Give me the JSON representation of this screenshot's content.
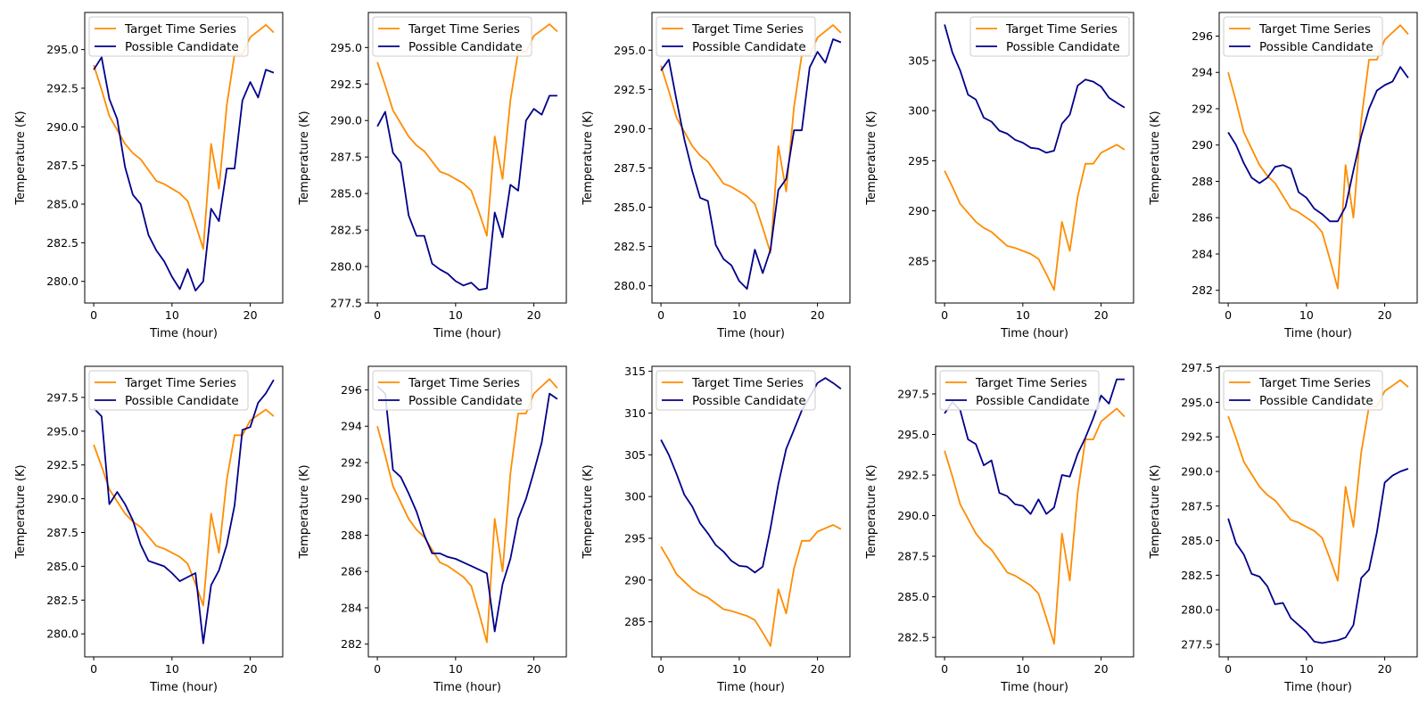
{
  "chart_data": [
    {
      "type": "line",
      "xlabel": "Time (hour)",
      "ylabel": "Temperature (K)",
      "xticks": [
        0,
        10,
        20
      ],
      "yticks": [
        280.0,
        282.5,
        285.0,
        287.5,
        290.0,
        292.5,
        295.0
      ],
      "ylim": [
        278.6,
        297.4
      ],
      "series": [
        {
          "name": "Target Time Series",
          "color": "#ff8c00",
          "values": [
            294.0,
            292.4,
            290.7,
            289.8,
            288.9,
            288.3,
            287.9,
            287.2,
            286.5,
            286.3,
            286.0,
            285.7,
            285.2,
            283.7,
            282.1,
            288.9,
            286.0,
            291.4,
            294.7,
            294.7,
            295.8,
            296.2,
            296.6,
            296.1
          ]
        },
        {
          "name": "Possible Candidate",
          "color": "#00008b",
          "values": [
            293.7,
            294.5,
            291.8,
            290.5,
            287.4,
            285.6,
            285.0,
            283.0,
            282.0,
            281.3,
            280.3,
            279.5,
            280.8,
            279.4,
            280.0,
            284.7,
            283.9,
            287.3,
            287.3,
            291.7,
            292.9,
            291.9,
            293.7,
            293.5
          ]
        }
      ],
      "legend": "upper-left"
    },
    {
      "type": "line",
      "xlabel": "Time (hour)",
      "ylabel": "Temperature (K)",
      "xticks": [
        0,
        10,
        20
      ],
      "yticks": [
        277.5,
        280.0,
        282.5,
        285.0,
        287.5,
        290.0,
        292.5,
        295.0
      ],
      "ylim": [
        277.5,
        297.4
      ],
      "series": [
        {
          "name": "Target Time Series",
          "color": "#ff8c00",
          "values": [
            294.0,
            292.4,
            290.7,
            289.8,
            288.9,
            288.3,
            287.9,
            287.2,
            286.5,
            286.3,
            286.0,
            285.7,
            285.2,
            283.7,
            282.1,
            288.9,
            286.0,
            291.4,
            294.7,
            294.7,
            295.8,
            296.2,
            296.6,
            296.1
          ]
        },
        {
          "name": "Possible Candidate",
          "color": "#00008b",
          "values": [
            289.6,
            290.6,
            287.8,
            287.1,
            283.5,
            282.1,
            282.1,
            280.2,
            279.8,
            279.5,
            279.0,
            278.7,
            278.9,
            278.4,
            278.5,
            283.7,
            282.0,
            285.6,
            285.2,
            290.0,
            290.8,
            290.4,
            291.7,
            291.7
          ]
        }
      ],
      "legend": "upper-left"
    },
    {
      "type": "line",
      "xlabel": "Time (hour)",
      "ylabel": "Temperature (K)",
      "xticks": [
        0,
        10,
        20
      ],
      "yticks": [
        280.0,
        282.5,
        285.0,
        287.5,
        290.0,
        292.5,
        295.0
      ],
      "ylim": [
        278.9,
        297.4
      ],
      "series": [
        {
          "name": "Target Time Series",
          "color": "#ff8c00",
          "values": [
            294.0,
            292.4,
            290.7,
            289.8,
            288.9,
            288.3,
            287.9,
            287.2,
            286.5,
            286.3,
            286.0,
            285.7,
            285.2,
            283.7,
            282.1,
            288.9,
            286.0,
            291.4,
            294.7,
            294.7,
            295.8,
            296.2,
            296.6,
            296.1
          ]
        },
        {
          "name": "Possible Candidate",
          "color": "#00008b",
          "values": [
            293.7,
            294.4,
            291.8,
            289.3,
            287.3,
            285.6,
            285.4,
            282.6,
            281.7,
            281.3,
            280.3,
            279.8,
            282.3,
            280.8,
            282.3,
            286.1,
            286.8,
            289.9,
            289.9,
            293.9,
            294.9,
            294.2,
            295.7,
            295.5
          ]
        }
      ],
      "legend": "upper-left"
    },
    {
      "type": "line",
      "xlabel": "Time (hour)",
      "ylabel": "Temperature (K)",
      "xticks": [
        0,
        10,
        20
      ],
      "yticks": [
        285,
        290,
        295,
        300,
        305
      ],
      "ylim": [
        280.8,
        309.8
      ],
      "series": [
        {
          "name": "Target Time Series",
          "color": "#ff8c00",
          "values": [
            294.0,
            292.4,
            290.7,
            289.8,
            288.9,
            288.3,
            287.9,
            287.2,
            286.5,
            286.3,
            286.0,
            285.7,
            285.2,
            283.7,
            282.1,
            288.9,
            286.0,
            291.4,
            294.7,
            294.7,
            295.8,
            296.2,
            296.6,
            296.1
          ]
        },
        {
          "name": "Possible Candidate",
          "color": "#00008b",
          "values": [
            308.6,
            305.8,
            304.0,
            301.6,
            301.1,
            299.3,
            298.9,
            298.0,
            297.7,
            297.1,
            296.8,
            296.3,
            296.2,
            295.8,
            296.0,
            298.7,
            299.6,
            302.5,
            303.1,
            302.9,
            302.4,
            301.3,
            300.8,
            300.3
          ]
        }
      ],
      "legend": "upper-right"
    },
    {
      "type": "line",
      "xlabel": "Time (hour)",
      "ylabel": "Temperature (K)",
      "xticks": [
        0,
        10,
        20
      ],
      "yticks": [
        282,
        284,
        286,
        288,
        290,
        292,
        294,
        296
      ],
      "ylim": [
        281.3,
        297.3
      ],
      "series": [
        {
          "name": "Target Time Series",
          "color": "#ff8c00",
          "values": [
            294.0,
            292.4,
            290.7,
            289.8,
            288.9,
            288.3,
            287.9,
            287.2,
            286.5,
            286.3,
            286.0,
            285.7,
            285.2,
            283.7,
            282.1,
            288.9,
            286.0,
            291.4,
            294.7,
            294.7,
            295.8,
            296.2,
            296.6,
            296.1
          ]
        },
        {
          "name": "Possible Candidate",
          "color": "#00008b",
          "values": [
            290.7,
            290.0,
            289.0,
            288.2,
            287.9,
            288.2,
            288.8,
            288.9,
            288.7,
            287.4,
            287.1,
            286.5,
            286.2,
            285.8,
            285.8,
            286.6,
            288.6,
            290.5,
            292.0,
            293.0,
            293.3,
            293.5,
            294.3,
            293.7
          ]
        }
      ],
      "legend": "upper-left"
    },
    {
      "type": "line",
      "xlabel": "Time (hour)",
      "ylabel": "Temperature (K)",
      "xticks": [
        0,
        10,
        20
      ],
      "yticks": [
        280.0,
        282.5,
        285.0,
        287.5,
        290.0,
        292.5,
        295.0,
        297.5
      ],
      "ylim": [
        278.3,
        299.8
      ],
      "series": [
        {
          "name": "Target Time Series",
          "color": "#ff8c00",
          "values": [
            294.0,
            292.4,
            290.7,
            289.8,
            288.9,
            288.3,
            287.9,
            287.2,
            286.5,
            286.3,
            286.0,
            285.7,
            285.2,
            283.7,
            282.1,
            288.9,
            286.0,
            291.4,
            294.7,
            294.7,
            295.8,
            296.2,
            296.6,
            296.1
          ]
        },
        {
          "name": "Possible Candidate",
          "color": "#00008b",
          "values": [
            296.7,
            296.1,
            289.6,
            290.5,
            289.6,
            288.4,
            286.6,
            285.4,
            285.2,
            285.0,
            284.5,
            283.9,
            284.2,
            284.5,
            279.3,
            283.6,
            284.7,
            286.6,
            289.5,
            295.1,
            295.3,
            297.1,
            297.8,
            298.8
          ]
        }
      ],
      "legend": "upper-left"
    },
    {
      "type": "line",
      "xlabel": "Time (hour)",
      "ylabel": "Temperature (K)",
      "xticks": [
        0,
        10,
        20
      ],
      "yticks": [
        282,
        284,
        286,
        288,
        290,
        292,
        294,
        296
      ],
      "ylim": [
        281.3,
        297.3
      ],
      "series": [
        {
          "name": "Target Time Series",
          "color": "#ff8c00",
          "values": [
            294.0,
            292.4,
            290.7,
            289.8,
            288.9,
            288.3,
            287.9,
            287.2,
            286.5,
            286.3,
            286.0,
            285.7,
            285.2,
            283.7,
            282.1,
            288.9,
            286.0,
            291.4,
            294.7,
            294.7,
            295.8,
            296.2,
            296.6,
            296.1
          ]
        },
        {
          "name": "Possible Candidate",
          "color": "#00008b",
          "values": [
            296.2,
            295.8,
            291.6,
            291.2,
            290.3,
            289.3,
            288.0,
            287.0,
            287.0,
            286.8,
            286.7,
            286.5,
            286.3,
            286.1,
            285.9,
            282.7,
            285.3,
            286.7,
            288.9,
            290.0,
            291.5,
            293.1,
            295.8,
            295.5
          ]
        }
      ],
      "legend": "upper-left"
    },
    {
      "type": "line",
      "xlabel": "Time (hour)",
      "ylabel": "Temperature (K)",
      "xticks": [
        0,
        10,
        20
      ],
      "yticks": [
        285,
        290,
        295,
        300,
        305,
        310,
        315
      ],
      "ylim": [
        280.8,
        315.6
      ],
      "series": [
        {
          "name": "Target Time Series",
          "color": "#ff8c00",
          "values": [
            294.0,
            292.4,
            290.7,
            289.8,
            288.9,
            288.3,
            287.9,
            287.2,
            286.5,
            286.3,
            286.0,
            285.7,
            285.2,
            283.7,
            282.1,
            288.9,
            286.0,
            291.4,
            294.7,
            294.7,
            295.8,
            296.2,
            296.6,
            296.1
          ]
        },
        {
          "name": "Possible Candidate",
          "color": "#00008b",
          "values": [
            306.8,
            305.0,
            302.7,
            300.2,
            298.8,
            296.8,
            295.6,
            294.2,
            293.4,
            292.3,
            291.7,
            291.6,
            290.9,
            291.6,
            296.2,
            301.5,
            305.7,
            308.0,
            310.3,
            311.9,
            313.6,
            314.2,
            313.6,
            312.9
          ]
        }
      ],
      "legend": "upper-left"
    },
    {
      "type": "line",
      "xlabel": "Time (hour)",
      "ylabel": "Temperature (K)",
      "xticks": [
        0,
        10,
        20
      ],
      "yticks": [
        282.5,
        285.0,
        287.5,
        290.0,
        292.5,
        295.0,
        297.5
      ],
      "ylim": [
        281.3,
        299.2
      ],
      "series": [
        {
          "name": "Target Time Series",
          "color": "#ff8c00",
          "values": [
            294.0,
            292.4,
            290.7,
            289.8,
            288.9,
            288.3,
            287.9,
            287.2,
            286.5,
            286.3,
            286.0,
            285.7,
            285.2,
            283.7,
            282.1,
            288.9,
            286.0,
            291.4,
            294.7,
            294.7,
            295.8,
            296.2,
            296.6,
            296.1
          ]
        },
        {
          "name": "Possible Candidate",
          "color": "#00008b",
          "values": [
            296.3,
            297.0,
            296.5,
            294.7,
            294.4,
            293.1,
            293.4,
            291.4,
            291.2,
            290.7,
            290.6,
            290.1,
            291.0,
            290.1,
            290.5,
            292.5,
            292.4,
            293.8,
            294.8,
            296.0,
            297.4,
            296.9,
            298.4,
            298.4
          ]
        }
      ],
      "legend": "upper-left"
    },
    {
      "type": "line",
      "xlabel": "Time (hour)",
      "ylabel": "Temperature (K)",
      "xticks": [
        0,
        10,
        20
      ],
      "yticks": [
        277.5,
        280.0,
        282.5,
        285.0,
        287.5,
        290.0,
        292.5,
        295.0,
        297.5
      ],
      "ylim": [
        276.6,
        297.6
      ],
      "series": [
        {
          "name": "Target Time Series",
          "color": "#ff8c00",
          "values": [
            294.0,
            292.4,
            290.7,
            289.8,
            288.9,
            288.3,
            287.9,
            287.2,
            286.5,
            286.3,
            286.0,
            285.7,
            285.2,
            283.7,
            282.1,
            288.9,
            286.0,
            291.4,
            294.7,
            294.7,
            295.8,
            296.2,
            296.6,
            296.1
          ]
        },
        {
          "name": "Possible Candidate",
          "color": "#00008b",
          "values": [
            286.6,
            284.8,
            284.0,
            282.6,
            282.4,
            281.7,
            280.4,
            280.5,
            279.4,
            278.9,
            278.4,
            277.7,
            277.6,
            277.7,
            277.8,
            278.0,
            278.9,
            282.3,
            282.9,
            285.6,
            289.2,
            289.7,
            290.0,
            290.2
          ]
        }
      ],
      "legend": "upper-left"
    }
  ]
}
